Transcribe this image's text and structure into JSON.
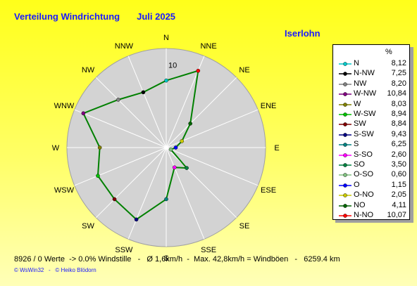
{
  "header": {
    "title": "Verteilung Windrichtung",
    "period": "Juli 2025",
    "station": "Iserlohn"
  },
  "legend": {
    "unit_header": "%"
  },
  "footer": {
    "stats": "8926 / 0 Werte  -> 0.0% Windstille   -   Ø 1,6km/h  -  Max. 42,8km/h = Windböen   -   6259.4 km",
    "credit": "© WsWin32   -   © Heiko Blödorn"
  },
  "chart_data": {
    "type": "radar",
    "r_max": 12,
    "ring_label": "10",
    "line_color": "#008000",
    "disc_color": "#d3d3d3",
    "directions": [
      "N",
      "NNE",
      "NE",
      "ENE",
      "E",
      "ESE",
      "SE",
      "SSE",
      "S",
      "SSW",
      "SW",
      "WSW",
      "W",
      "WNW",
      "NW",
      "NNW"
    ],
    "series": [
      {
        "label": "N",
        "direction": "N",
        "value": 8.12,
        "display": "8,12",
        "color": "#00c8c8"
      },
      {
        "label": "N-NW",
        "direction": "NNW",
        "value": 7.25,
        "display": "7,25",
        "color": "#000000"
      },
      {
        "label": "NW",
        "direction": "NW",
        "value": 8.2,
        "display": "8,20",
        "color": "#808080"
      },
      {
        "label": "W-NW",
        "direction": "WNW",
        "value": 10.84,
        "display": "10,84",
        "color": "#800080"
      },
      {
        "label": "W",
        "direction": "W",
        "value": 8.03,
        "display": "8,03",
        "color": "#808000"
      },
      {
        "label": "W-SW",
        "direction": "WSW",
        "value": 8.94,
        "display": "8,94",
        "color": "#00c000"
      },
      {
        "label": "SW",
        "direction": "SW",
        "value": 8.84,
        "display": "8,84",
        "color": "#800000"
      },
      {
        "label": "S-SW",
        "direction": "SSW",
        "value": 9.43,
        "display": "9,43",
        "color": "#000080"
      },
      {
        "label": "S",
        "direction": "S",
        "value": 6.25,
        "display": "6,25",
        "color": "#008080"
      },
      {
        "label": "S-SO",
        "direction": "SSE",
        "value": 2.6,
        "display": "2,60",
        "color": "#ff00ff"
      },
      {
        "label": "SO",
        "direction": "SE",
        "value": 3.5,
        "display": "3,50",
        "color": "#008040"
      },
      {
        "label": "O-SO",
        "direction": "ESE",
        "value": 0.6,
        "display": "0,60",
        "color": "#80c080"
      },
      {
        "label": "O",
        "direction": "E",
        "value": 1.15,
        "display": "1,15",
        "color": "#0000ff"
      },
      {
        "label": "O-NO",
        "direction": "ENE",
        "value": 2.05,
        "display": "2,05",
        "color": "#c8c800"
      },
      {
        "label": "NO",
        "direction": "NE",
        "value": 4.11,
        "display": "4,11",
        "color": "#006400"
      },
      {
        "label": "N-NO",
        "direction": "NNE",
        "value": 10.07,
        "display": "10,07",
        "color": "#ff0000"
      }
    ]
  }
}
